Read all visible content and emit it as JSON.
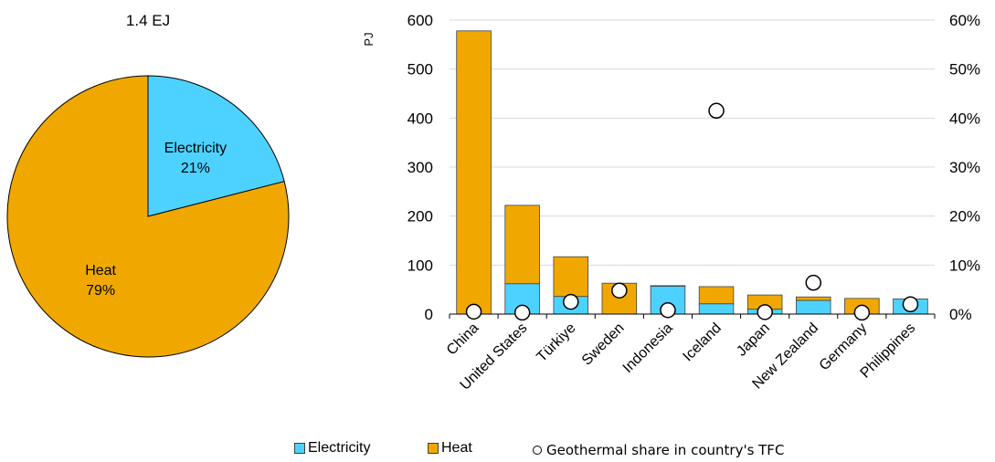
{
  "chart_data": [
    {
      "type": "pie",
      "title": "1.4 EJ",
      "slices": [
        {
          "name": "Electricity",
          "label": "Electricity",
          "pct_label": "21%",
          "value": 21,
          "color": "#4dd2ff"
        },
        {
          "name": "Heat",
          "label": "Heat",
          "pct_label": "79%",
          "value": 79,
          "color": "#f0a800"
        }
      ]
    },
    {
      "type": "bar",
      "stacked": true,
      "categories": [
        "China",
        "United States",
        "Türkiye",
        "Sweden",
        "Indonesia",
        "Iceland",
        "Japan",
        "New Zealand",
        "Germany",
        "Philippines"
      ],
      "series": [
        {
          "name": "Electricity",
          "color": "#4dd2ff",
          "values": [
            0,
            62,
            36,
            0,
            57,
            21,
            10,
            28,
            0,
            31
          ]
        },
        {
          "name": "Heat",
          "color": "#f0a800",
          "values": [
            578,
            160,
            81,
            63,
            1,
            35,
            29,
            7,
            32,
            0
          ]
        }
      ],
      "scatter_series": {
        "name": "Geothermal share in country's TFC",
        "axis": "right",
        "values": [
          0.5,
          0.3,
          2.5,
          4.8,
          0.8,
          41.5,
          0.4,
          6.4,
          0.3,
          2.0
        ]
      },
      "ylabel": "PJ",
      "ylim": [
        0,
        600
      ],
      "yticks": [
        0,
        100,
        200,
        300,
        400,
        500,
        600
      ],
      "y2lim": [
        0,
        60
      ],
      "y2ticks": [
        "0%",
        "10%",
        "20%",
        "30%",
        "40%",
        "50%",
        "60%"
      ],
      "grid": true,
      "legend_position": "bottom"
    }
  ],
  "legend": {
    "electricity": "Electricity",
    "heat": "Heat",
    "share": "Geothermal share in country's TFC"
  }
}
